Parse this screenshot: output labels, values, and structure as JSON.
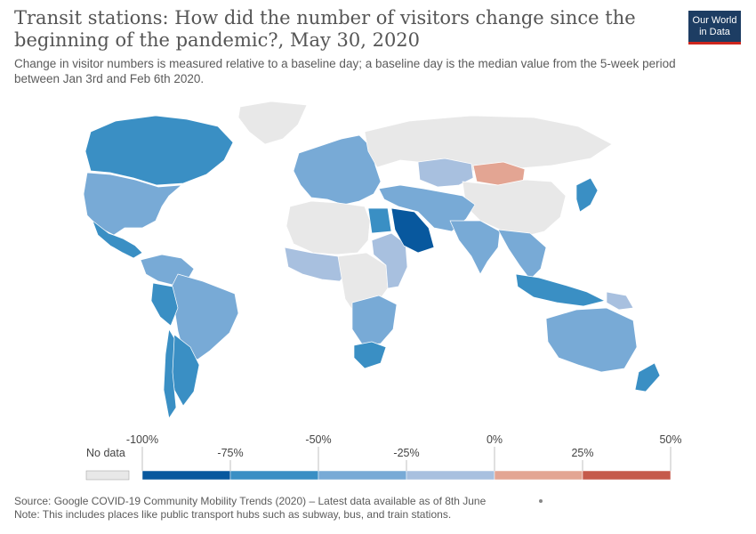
{
  "header": {
    "title": "Transit stations: How did the number of visitors change since the beginning of the pandemic?, May 30, 2020",
    "subtitle": "Change in visitor numbers is measured relative to a baseline day; a baseline day is the median value from the 5-week period between Jan 3rd and Feb 6th 2020."
  },
  "logo": {
    "line1": "Our World",
    "line2": "in Data"
  },
  "legend": {
    "no_data_label": "No data",
    "no_data_color": "#e8e8e8",
    "tick_labels": [
      "-100%",
      "-75%",
      "-50%",
      "-25%",
      "0%",
      "25%",
      "50%"
    ],
    "bins": [
      {
        "from": -100,
        "to": -75,
        "color": "#08589e"
      },
      {
        "from": -75,
        "to": -50,
        "color": "#3a8fc4"
      },
      {
        "from": -50,
        "to": -25,
        "color": "#78aad6"
      },
      {
        "from": -25,
        "to": 0,
        "color": "#a8c0df"
      },
      {
        "from": 0,
        "to": 25,
        "color": "#e3a593"
      },
      {
        "from": 25,
        "to": 50,
        "color": "#c55a4b"
      }
    ]
  },
  "footer": {
    "source": "Source: Google COVID-19 Community Mobility Trends (2020) – Latest data available as of 8th June",
    "note": "Note: This includes places like public transport hubs such as subway, bus, and train stations."
  },
  "map_regions": [
    {
      "name": "Greenland",
      "color": "#e8e8e8"
    },
    {
      "name": "Canada",
      "color": "#3a8fc4"
    },
    {
      "name": "United States",
      "color": "#78aad6"
    },
    {
      "name": "Mexico",
      "color": "#3a8fc4"
    },
    {
      "name": "South America north",
      "color": "#78aad6"
    },
    {
      "name": "Brazil",
      "color": "#78aad6"
    },
    {
      "name": "Peru",
      "color": "#3a8fc4"
    },
    {
      "name": "Argentina",
      "color": "#3a8fc4"
    },
    {
      "name": "Chile",
      "color": "#3a8fc4"
    },
    {
      "name": "Europe",
      "color": "#78aad6"
    },
    {
      "name": "Russia",
      "color": "#e8e8e8"
    },
    {
      "name": "Kazakhstan",
      "color": "#a8c0df"
    },
    {
      "name": "Mongolia",
      "color": "#e3a593"
    },
    {
      "name": "China",
      "color": "#e8e8e8"
    },
    {
      "name": "North Africa",
      "color": "#e8e8e8"
    },
    {
      "name": "Egypt",
      "color": "#3a8fc4"
    },
    {
      "name": "West Africa",
      "color": "#a8c0df"
    },
    {
      "name": "Central Africa",
      "color": "#e8e8e8"
    },
    {
      "name": "East Africa",
      "color": "#a8c0df"
    },
    {
      "name": "Southern Africa",
      "color": "#78aad6"
    },
    {
      "name": "South Africa",
      "color": "#3a8fc4"
    },
    {
      "name": "Saudi Arabia",
      "color": "#08589e"
    },
    {
      "name": "Middle East",
      "color": "#78aad6"
    },
    {
      "name": "India",
      "color": "#78aad6"
    },
    {
      "name": "Southeast Asia",
      "color": "#78aad6"
    },
    {
      "name": "Indonesia",
      "color": "#3a8fc4"
    },
    {
      "name": "Japan",
      "color": "#3a8fc4"
    },
    {
      "name": "Australia",
      "color": "#78aad6"
    },
    {
      "name": "New Zealand",
      "color": "#3a8fc4"
    },
    {
      "name": "Papua New Guinea",
      "color": "#a8c0df"
    }
  ]
}
